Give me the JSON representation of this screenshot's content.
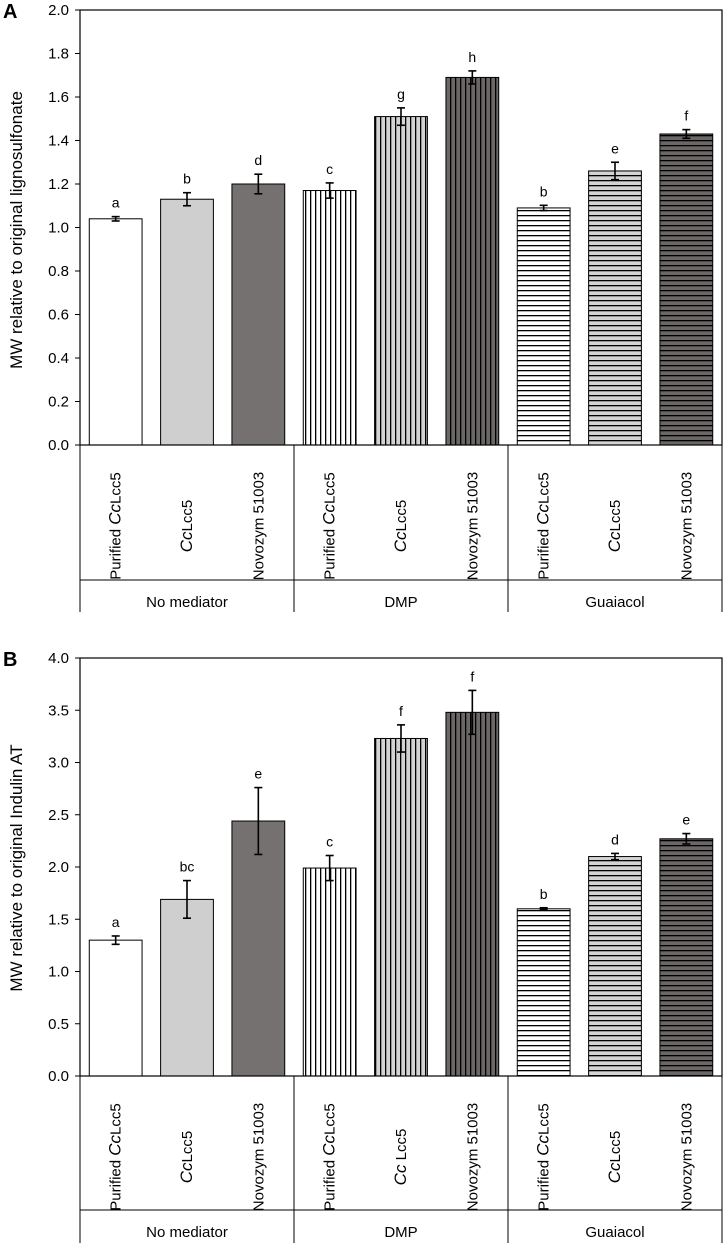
{
  "colors": {
    "axis": "#000000",
    "plain_white": "#ffffff",
    "light_gray": "#d0cfcf",
    "dark_gray": "#767171",
    "stripe": "#000000",
    "dark_stripe_fill": "#6b6767",
    "light_stripe_fill": "#d3d3d3"
  },
  "chart_data": [
    {
      "type": "bar",
      "panel_label": "A",
      "title": "",
      "ylabel": "MW relative to original lignosulfonate",
      "ylim": [
        0,
        2.0
      ],
      "yticks": [
        "0.0",
        "0.2",
        "0.4",
        "0.6",
        "0.8",
        "1.0",
        "1.2",
        "1.4",
        "1.6",
        "1.8",
        "2.0"
      ],
      "grid": false,
      "groups": [
        "No mediator",
        "DMP",
        "Guaiacol"
      ],
      "categories": [
        {
          "prefix": "Purified ",
          "italic": "Cc",
          "suffix": "Lcc5"
        },
        {
          "prefix": "",
          "italic": "Cc",
          "suffix": "Lcc5"
        },
        {
          "prefix": "Novozym 51003",
          "italic": "",
          "suffix": ""
        },
        {
          "prefix": "Purified ",
          "italic": "Cc",
          "suffix": "Lcc5"
        },
        {
          "prefix": "",
          "italic": "Cc",
          "suffix": "Lcc5"
        },
        {
          "prefix": "Novozym 51003",
          "italic": "",
          "suffix": ""
        },
        {
          "prefix": "Purified ",
          "italic": "Cc",
          "suffix": "Lcc5"
        },
        {
          "prefix": "",
          "italic": "Cc",
          "suffix": "Lcc5"
        },
        {
          "prefix": "Novozym 51003",
          "italic": "",
          "suffix": ""
        }
      ],
      "values": [
        1.04,
        1.13,
        1.2,
        1.17,
        1.51,
        1.69,
        1.09,
        1.26,
        1.43
      ],
      "errors": [
        0.01,
        0.03,
        0.045,
        0.035,
        0.04,
        0.03,
        0.012,
        0.04,
        0.02
      ],
      "significance": [
        "a",
        "b",
        "d",
        "c",
        "g",
        "h",
        "b",
        "e",
        "f"
      ],
      "fills": [
        "plain",
        "light",
        "dark",
        "vstripe-white",
        "vstripe-light",
        "vstripe-dark",
        "hstripe-white",
        "hstripe-light",
        "hstripe-dark"
      ]
    },
    {
      "type": "bar",
      "panel_label": "B",
      "title": "",
      "ylabel": "MW relative to original Indulin AT",
      "ylim": [
        0,
        4.0
      ],
      "yticks": [
        "0.0",
        "0.5",
        "1.0",
        "1.5",
        "2.0",
        "2.5",
        "3.0",
        "3.5",
        "4.0"
      ],
      "grid": false,
      "groups": [
        "No mediator",
        "DMP",
        "Guaiacol"
      ],
      "categories": [
        {
          "prefix": "Purified ",
          "italic": "Cc",
          "suffix": "Lcc5"
        },
        {
          "prefix": "",
          "italic": "Cc",
          "suffix": "Lcc5"
        },
        {
          "prefix": "Novozym 51003",
          "italic": "",
          "suffix": ""
        },
        {
          "prefix": "Purified ",
          "italic": "Cc",
          "suffix": "Lcc5"
        },
        {
          "prefix": "",
          "italic": "Cc",
          "suffix": " Lcc5"
        },
        {
          "prefix": "Novozym 51003",
          "italic": "",
          "suffix": ""
        },
        {
          "prefix": "Purified ",
          "italic": "Cc",
          "suffix": "Lcc5"
        },
        {
          "prefix": "",
          "italic": "Cc",
          "suffix": "Lcc5"
        },
        {
          "prefix": "Novozym 51003",
          "italic": "",
          "suffix": ""
        }
      ],
      "values": [
        1.3,
        1.69,
        2.44,
        1.99,
        3.23,
        3.48,
        1.6,
        2.1,
        2.27
      ],
      "errors": [
        0.04,
        0.18,
        0.32,
        0.12,
        0.13,
        0.21,
        0.01,
        0.03,
        0.05
      ],
      "significance": [
        "a",
        "bc",
        "e",
        "c",
        "f",
        "f",
        "b",
        "d",
        "e"
      ],
      "fills": [
        "plain",
        "light",
        "dark",
        "vstripe-white",
        "vstripe-light",
        "vstripe-dark",
        "hstripe-white",
        "hstripe-light",
        "hstripe-dark"
      ]
    }
  ]
}
